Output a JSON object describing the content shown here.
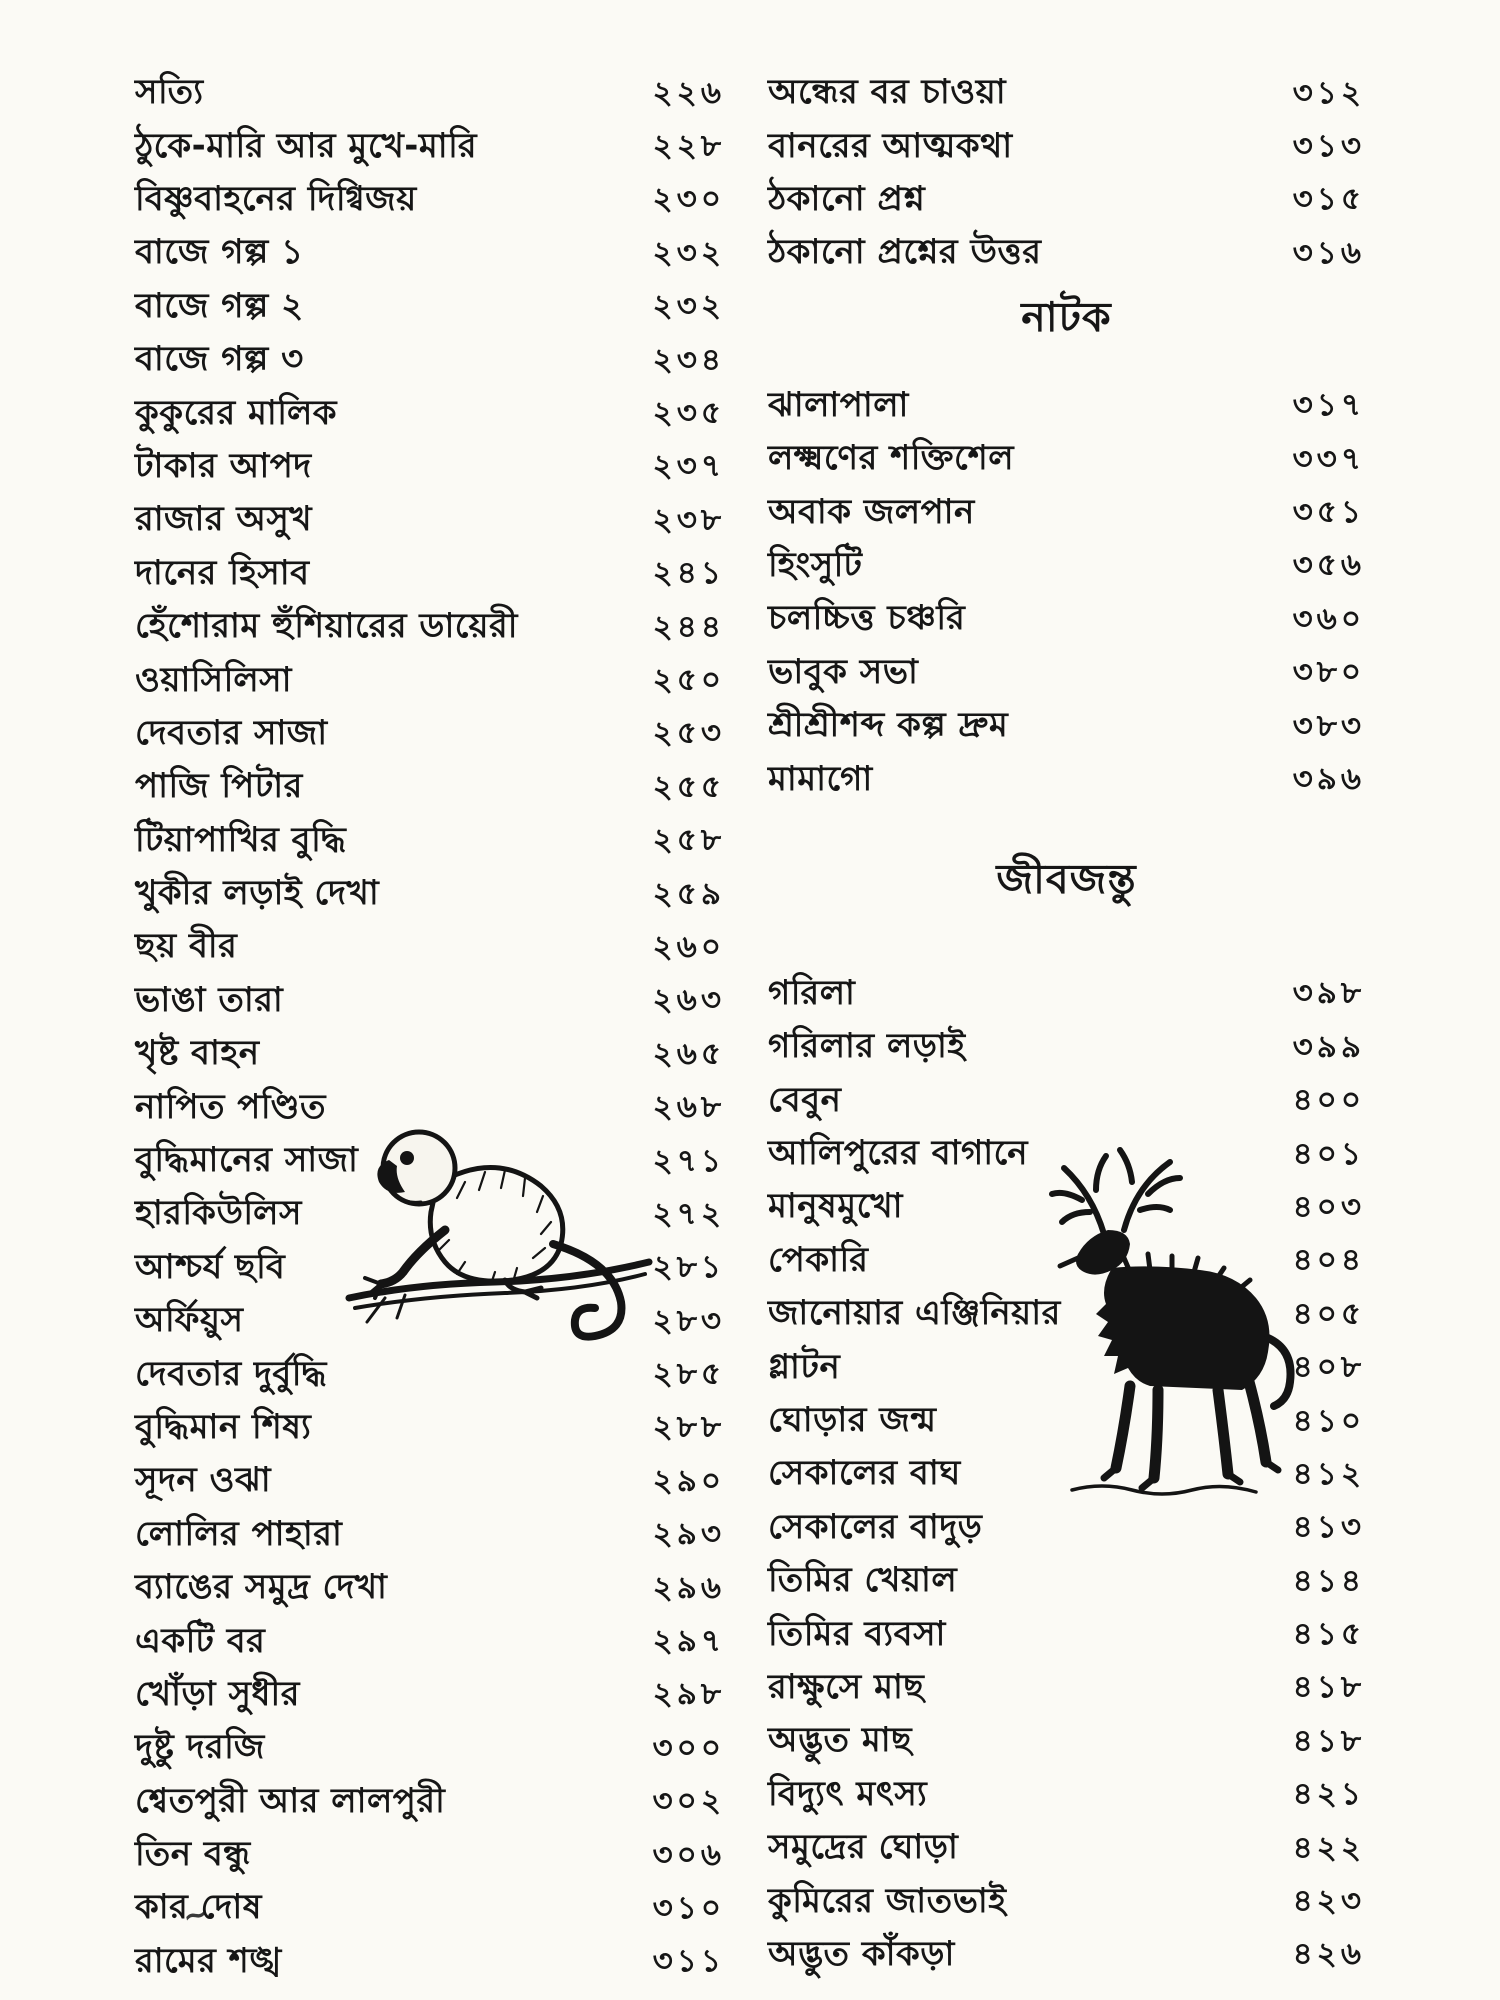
{
  "page": {
    "background": "#fbfaf5",
    "ink_color": "#161616"
  },
  "left_column": {
    "entries": [
      {
        "title": "সত্যি",
        "page": "২২৬"
      },
      {
        "title": "ঠুকে-মারি আর মুখে-মারি",
        "page": "২২৮"
      },
      {
        "title": "বিষ্ণুবাহনের দিগ্বিজয়",
        "page": "২৩০"
      },
      {
        "title": "বাজে গল্প ১",
        "page": "২৩২"
      },
      {
        "title": "বাজে গল্প ২",
        "page": "২৩২"
      },
      {
        "title": "বাজে গল্প ৩",
        "page": "২৩৪"
      },
      {
        "title": "কুকুরের মালিক",
        "page": "২৩৫"
      },
      {
        "title": "টাকার আপদ",
        "page": "২৩৭"
      },
      {
        "title": "রাজার অসুখ",
        "page": "২৩৮"
      },
      {
        "title": "দানের হিসাব",
        "page": "২৪১"
      },
      {
        "title": "হেঁশোরাম হুঁশিয়ারের ডায়েরী",
        "page": "২৪৪"
      },
      {
        "title": "ওয়াসিলিসা",
        "page": "২৫০"
      },
      {
        "title": "দেবতার সাজা",
        "page": "২৫৩"
      },
      {
        "title": "পাজি পিটার",
        "page": "২৫৫"
      },
      {
        "title": "টিয়াপাখির বুদ্ধি",
        "page": "২৫৮"
      },
      {
        "title": "খুকীর লড়াই দেখা",
        "page": "২৫৯"
      },
      {
        "title": "ছয় বীর",
        "page": "২৬০"
      },
      {
        "title": "ভাঙা তারা",
        "page": "২৬৩"
      },
      {
        "title": "খৃষ্ট বাহন",
        "page": "২৬৫"
      },
      {
        "title": "নাপিত পণ্ডিত",
        "page": "২৬৮"
      },
      {
        "title": "বুদ্ধিমানের সাজা",
        "page": "২৭১"
      },
      {
        "title": "হারকিউলিস",
        "page": "২৭২"
      },
      {
        "title": "আশ্চর্য ছবি",
        "page": "২৮১"
      },
      {
        "title": "অর্ফিয়ুস",
        "page": "২৮৩"
      },
      {
        "title": "দেবতার দুর্বুদ্ধি",
        "page": "২৮৫"
      },
      {
        "title": "বুদ্ধিমান শিষ্য",
        "page": "২৮৮"
      },
      {
        "title": "সূদন ওঝা",
        "page": "২৯০"
      },
      {
        "title": "লোলির পাহারা",
        "page": "২৯৩"
      },
      {
        "title": "ব্যাঙের সমুদ্র দেখা",
        "page": "২৯৬"
      },
      {
        "title": "একটি বর",
        "page": "২৯৭"
      },
      {
        "title": "খোঁড়া সুধীর",
        "page": "২৯৮"
      },
      {
        "title": "দুষ্টু দরজি",
        "page": "৩০০"
      },
      {
        "title": "শ্বেতপুরী আর লালপুরী",
        "page": "৩০২"
      },
      {
        "title": "তিন বন্ধু",
        "page": "৩০৬"
      },
      {
        "title": "কার দোষ",
        "page": "৩১০"
      },
      {
        "title": "রামের শঙ্খ",
        "page": "৩১১"
      }
    ]
  },
  "right_column": {
    "sections": [
      {
        "header": "",
        "entries": [
          {
            "title": "অন্ধের বর চাওয়া",
            "page": "৩১২"
          },
          {
            "title": "বানরের আত্মকথা",
            "page": "৩১৩"
          },
          {
            "title": "ঠকানো প্রশ্ন",
            "page": "৩১৫"
          },
          {
            "title": "ঠকানো প্রশ্নের উত্তর",
            "page": "৩১৬"
          }
        ]
      },
      {
        "header": "নাটক",
        "entries": [
          {
            "title": "ঝালাপালা",
            "page": "৩১৭"
          },
          {
            "title": "লক্ষ্মণের শক্তিশেল",
            "page": "৩৩৭"
          },
          {
            "title": "অবাক জলপান",
            "page": "৩৫১"
          },
          {
            "title": "হিংসুটি",
            "page": "৩৫৬"
          },
          {
            "title": "চলচ্চিত্ত চঞ্চরি",
            "page": "৩৬০"
          },
          {
            "title": "ভাবুক সভা",
            "page": "৩৮০"
          },
          {
            "title": "শ্রীশ্রীশব্দ কল্প দ্রুম",
            "page": "৩৮৩"
          },
          {
            "title": "মামাগো",
            "page": "৩৯৬"
          }
        ]
      },
      {
        "header": "জীবজন্তু",
        "entries": [
          {
            "title": "গরিলা",
            "page": "৩৯৮"
          },
          {
            "title": "গরিলার লড়াই",
            "page": "৩৯৯"
          },
          {
            "title": "বেবুন",
            "page": "৪০০"
          },
          {
            "title": "আলিপুরের বাগানে",
            "page": "৪০১"
          },
          {
            "title": "মানুষমুখো",
            "page": "৪০৩"
          },
          {
            "title": "পেকারি",
            "page": "৪০৪"
          },
          {
            "title": "জানোয়ার এঞ্জিনিয়ার",
            "page": "৪০৫"
          },
          {
            "title": "গ্লাটন",
            "page": "৪০৮"
          },
          {
            "title": "ঘোড়ার জন্ম",
            "page": "৪১০"
          },
          {
            "title": "সেকালের বাঘ",
            "page": "৪১২"
          },
          {
            "title": "সেকালের বাদুড়",
            "page": "৪১৩"
          },
          {
            "title": "তিমির খেয়াল",
            "page": "৪১৪"
          },
          {
            "title": "তিমির ব্যবসা",
            "page": "৪১৫"
          },
          {
            "title": "রাক্ষুসে মাছ",
            "page": "৪১৮"
          },
          {
            "title": "অদ্ভুত মাছ",
            "page": "৪১৮"
          },
          {
            "title": "বিদ্যুৎ মৎস্য",
            "page": "৪২১"
          },
          {
            "title": "সমুদ্রের ঘোড়া",
            "page": "৪২২"
          },
          {
            "title": "কুমিরের জাতভাই",
            "page": "৪২৩"
          },
          {
            "title": "অদ্ভুত কাঁকড়া",
            "page": "৪২৬"
          }
        ]
      }
    ]
  },
  "illustrations": {
    "monkey": {
      "alt": "ink drawing of a monkey crouching on a branch"
    },
    "beast": {
      "alt": "ink drawing of a shaggy antlered beast"
    }
  },
  "marks": {
    "stray": "~"
  }
}
